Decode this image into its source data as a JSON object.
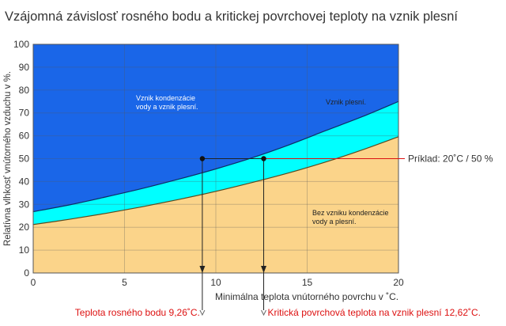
{
  "chart_data": {
    "type": "area",
    "title": "Vzájomná závislosť rosného bodu a kritickej povrchovej teploty na vznik plesní",
    "xlabel": "Minimálna teplota vnútorného povrchu v ˚C.",
    "ylabel": "Relatívna vlhkosť vnútorného vzduchu v %.",
    "xlim": [
      0,
      20
    ],
    "ylim": [
      0,
      100
    ],
    "x_ticks": [
      0,
      5,
      10,
      15,
      20
    ],
    "y_ticks": [
      0,
      10,
      20,
      30,
      40,
      50,
      60,
      70,
      80,
      90,
      100
    ],
    "grid": true,
    "colors": {
      "condensation_zone": "#1a66e8",
      "mold_zone": "#00ffff",
      "safe_zone": "#fbd48a",
      "example_line": "#dd1111",
      "guide_line": "#222222",
      "annotation_text": "#dd1111",
      "title_text": "#333333"
    },
    "series": [
      {
        "x": [
          0,
          2,
          4,
          6,
          8,
          10,
          12,
          14,
          16,
          18,
          20
        ],
        "values": [
          26.8,
          29.8,
          33.3,
          37.0,
          41.1,
          45.5,
          50.4,
          56.0,
          62.2,
          68.3,
          75.0
        ]
      },
      {
        "x": [
          0,
          2,
          4,
          6,
          8,
          10,
          12,
          14,
          16,
          18,
          20
        ],
        "values": [
          21.2,
          23.5,
          26.1,
          29.0,
          32.2,
          35.7,
          39.6,
          43.8,
          48.5,
          53.8,
          59.6
        ]
      }
    ],
    "zone_labels": {
      "condensation": [
        "Vznik kondenzácie",
        "vody a vznik plesní."
      ],
      "mold": "Vznik plesní.",
      "safe": [
        "Bez vzniku kondenzácie",
        "vody a plesní."
      ]
    },
    "example": {
      "label": "Príklad: 20˚C / 50 %",
      "rh": 50,
      "dew_point": 9.26,
      "critical_temp": 12.62,
      "dew_point_label": "Teplota rosného bodu 9,26˚C.",
      "critical_label": "Kritická povrchová teplota na vznik plesní 12,62˚C."
    }
  }
}
